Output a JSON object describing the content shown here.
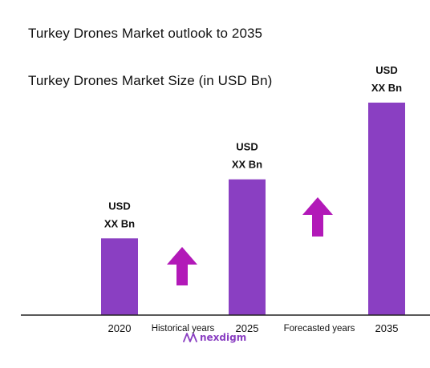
{
  "header": {
    "title": "Turkey Drones Market outlook to 2035",
    "subtitle": "Turkey Drones Market Size (in USD Bn)"
  },
  "brand": {
    "logo_text": "nexdigm",
    "icon": "nexdigm-wave-icon",
    "color": "#8a3fc2"
  },
  "colors": {
    "bar": "#8a3fc2",
    "arrow": "#b219b8",
    "axis": "#222222"
  },
  "chart_data": {
    "type": "bar",
    "title": "Turkey Drones Market Size (in USD Bn)",
    "xlabel": "",
    "ylabel": "",
    "grid": false,
    "legend": "none",
    "categories": [
      "2020",
      "2025",
      "2035"
    ],
    "values": [
      26,
      46,
      72
    ],
    "ylim": [
      0,
      72
    ],
    "data_labels": [
      [
        "USD",
        "XX Bn"
      ],
      [
        "USD",
        "XX Bn"
      ],
      [
        "USD",
        "XX Bn"
      ]
    ],
    "annotations": [
      {
        "label": "Historical years",
        "between": [
          "2020",
          "2025"
        ],
        "arrow": "up"
      },
      {
        "label": "Forecasted years",
        "between": [
          "2025",
          "2035"
        ],
        "arrow": "up"
      }
    ]
  }
}
